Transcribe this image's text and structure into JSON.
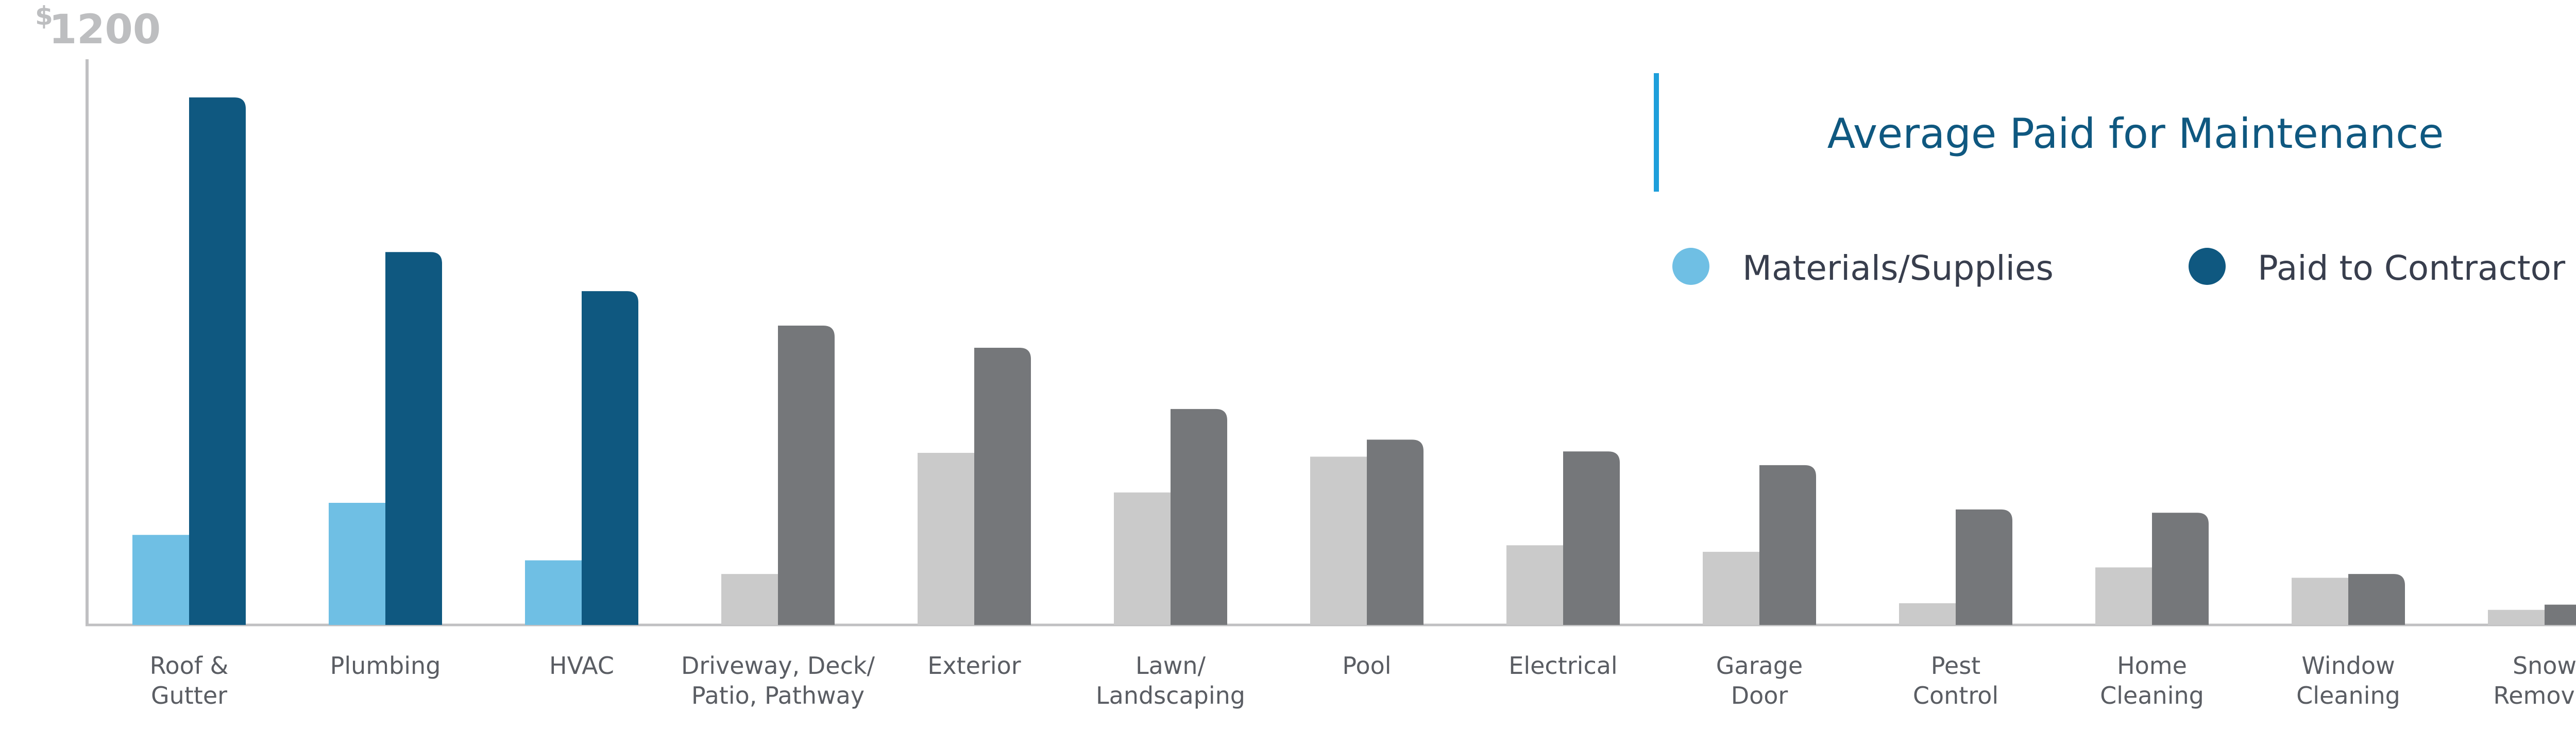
{
  "chart_data": {
    "type": "bar",
    "title": "Average Paid for Maintenance",
    "ylabel": "",
    "xlabel": "",
    "y_top_label_currency": "$",
    "y_top_label_value": "1200",
    "ylim": [
      0,
      1200
    ],
    "grid": false,
    "legend_placement": "top-right",
    "categories": [
      [
        "Roof &",
        "Gutter"
      ],
      [
        "Plumbing"
      ],
      [
        "HVAC"
      ],
      [
        "Driveway, Deck/",
        "Patio, Pathway"
      ],
      [
        "Exterior"
      ],
      [
        "Lawn/",
        "Landscaping"
      ],
      [
        "Pool"
      ],
      [
        "Electrical"
      ],
      [
        "Garage",
        "Door"
      ],
      [
        "Pest",
        "Control"
      ],
      [
        "Home",
        "Cleaning"
      ],
      [
        "Window",
        "Cleaning"
      ],
      [
        "Snow",
        "Removal"
      ]
    ],
    "highlighted_categories": 3,
    "series": [
      {
        "name": "Materials/Supplies",
        "values": [
          191,
          259,
          137,
          108,
          365,
          281,
          357,
          169,
          155,
          46,
          122,
          100,
          32
        ]
      },
      {
        "name": "Paid to Contractor",
        "values": [
          1119,
          791,
          708,
          635,
          588,
          458,
          393,
          368,
          339,
          245,
          238,
          108,
          43
        ]
      }
    ],
    "colors": {
      "materials": "#6fbfe4",
      "contractor": "#0f5880",
      "materials_muted": "#cacaca",
      "contractor_muted": "#75777a",
      "axis": "#c0c0c2",
      "label": "#5a5d63",
      "title": "#0f5880",
      "title_rule": "#1e9fdb",
      "legend_text": "#383e4d"
    }
  }
}
